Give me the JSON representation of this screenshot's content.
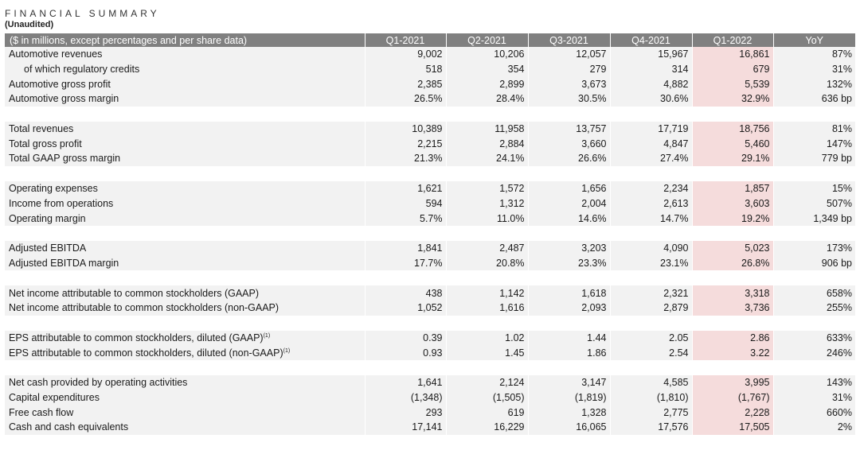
{
  "title": "FINANCIAL SUMMARY",
  "subtitle": "(Unaudited)",
  "header": [
    "($ in millions, except percentages and per share data)",
    "Q1-2021",
    "Q2-2021",
    "Q3-2021",
    "Q4-2021",
    "Q1-2022",
    "YoY"
  ],
  "highlight_column_color": "#f5dcdc",
  "header_color": "#808080",
  "row_color": "#f2f2f2",
  "rows": [
    {
      "label": "Automotive revenues",
      "values": [
        "9,002",
        "10,206",
        "12,057",
        "15,967",
        "16,861",
        "87%"
      ]
    },
    {
      "label": "of which regulatory credits",
      "indent": true,
      "values": [
        "518",
        "354",
        "279",
        "314",
        "679",
        "31%"
      ]
    },
    {
      "label": "Automotive gross profit",
      "values": [
        "2,385",
        "2,899",
        "3,673",
        "4,882",
        "5,539",
        "132%"
      ]
    },
    {
      "label": "Automotive gross margin",
      "values": [
        "26.5%",
        "28.4%",
        "30.5%",
        "30.6%",
        "32.9%",
        "636 bp"
      ]
    },
    {
      "spacer": true
    },
    {
      "label": "Total revenues",
      "values": [
        "10,389",
        "11,958",
        "13,757",
        "17,719",
        "18,756",
        "81%"
      ]
    },
    {
      "label": "Total gross profit",
      "values": [
        "2,215",
        "2,884",
        "3,660",
        "4,847",
        "5,460",
        "147%"
      ]
    },
    {
      "label": "Total GAAP gross margin",
      "values": [
        "21.3%",
        "24.1%",
        "26.6%",
        "27.4%",
        "29.1%",
        "779 bp"
      ]
    },
    {
      "spacer": true
    },
    {
      "label": "Operating expenses",
      "values": [
        "1,621",
        "1,572",
        "1,656",
        "2,234",
        "1,857",
        "15%"
      ]
    },
    {
      "label": "Income from operations",
      "values": [
        "594",
        "1,312",
        "2,004",
        "2,613",
        "3,603",
        "507%"
      ]
    },
    {
      "label": "Operating margin",
      "values": [
        "5.7%",
        "11.0%",
        "14.6%",
        "14.7%",
        "19.2%",
        "1,349 bp"
      ]
    },
    {
      "spacer": true
    },
    {
      "label": "Adjusted EBITDA",
      "values": [
        "1,841",
        "2,487",
        "3,203",
        "4,090",
        "5,023",
        "173%"
      ]
    },
    {
      "label": "Adjusted EBITDA margin",
      "values": [
        "17.7%",
        "20.8%",
        "23.3%",
        "23.1%",
        "26.8%",
        "906 bp"
      ]
    },
    {
      "spacer": true
    },
    {
      "label": "Net income attributable to common stockholders (GAAP)",
      "values": [
        "438",
        "1,142",
        "1,618",
        "2,321",
        "3,318",
        "658%"
      ]
    },
    {
      "label": "Net income attributable to common stockholders (non-GAAP)",
      "values": [
        "1,052",
        "1,616",
        "2,093",
        "2,879",
        "3,736",
        "255%"
      ]
    },
    {
      "spacer": true
    },
    {
      "label": "EPS attributable to common stockholders, diluted (GAAP)",
      "sup": "(1)",
      "values": [
        "0.39",
        "1.02",
        "1.44",
        "2.05",
        "2.86",
        "633%"
      ]
    },
    {
      "label": "EPS attributable to common stockholders, diluted (non-GAAP)",
      "sup": "(1)",
      "values": [
        "0.93",
        "1.45",
        "1.86",
        "2.54",
        "3.22",
        "246%"
      ]
    },
    {
      "spacer": true
    },
    {
      "label": "Net cash provided by operating activities",
      "values": [
        "1,641",
        "2,124",
        "3,147",
        "4,585",
        "3,995",
        "143%"
      ]
    },
    {
      "label": "Capital expenditures",
      "values": [
        "(1,348)",
        "(1,505)",
        "(1,819)",
        "(1,810)",
        "(1,767)",
        "31%"
      ]
    },
    {
      "label": "Free cash flow",
      "values": [
        "293",
        "619",
        "1,328",
        "2,775",
        "2,228",
        "660%"
      ]
    },
    {
      "label": "Cash and cash equivalents",
      "values": [
        "17,141",
        "16,229",
        "16,065",
        "17,576",
        "17,505",
        "2%"
      ]
    }
  ]
}
